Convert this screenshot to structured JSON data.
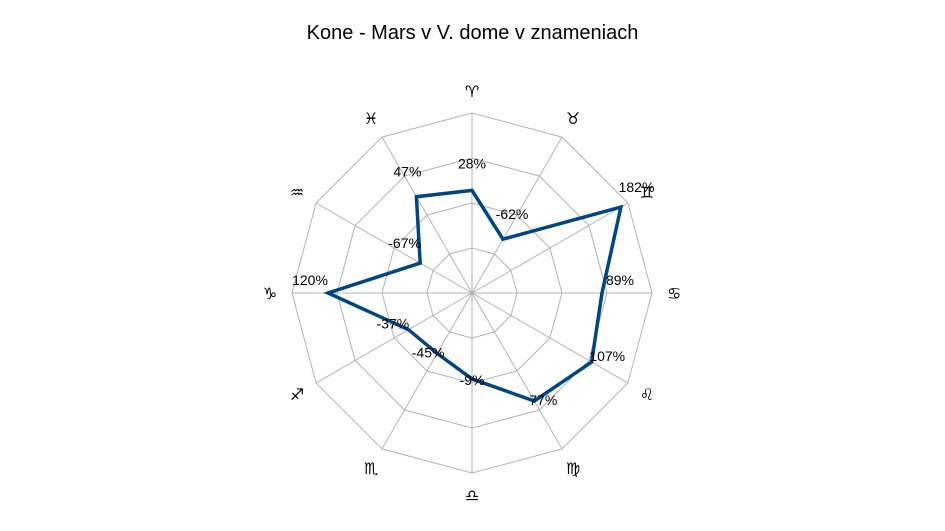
{
  "chart_data": {
    "type": "radar",
    "title": "Kone - Mars v V. dome v znameniach",
    "categories": [
      "♈",
      "♓",
      "♒",
      "♑",
      "♐",
      "♏",
      "♎",
      "♍",
      "♌",
      "♋",
      "♊",
      "♉"
    ],
    "series": [
      {
        "values": [
          28,
          47,
          -67,
          120,
          -37,
          -45,
          -9,
          77,
          107,
          89,
          182,
          -62
        ],
        "labels": [
          "28%",
          "47%",
          "-67%",
          "120%",
          "-37%",
          "-45%",
          "-9%",
          "77%",
          "107%",
          "89%",
          "182%",
          "-62%"
        ],
        "color": "#004586"
      }
    ],
    "rlim": [
      -200,
      200
    ],
    "grid": true,
    "legend": "none"
  }
}
